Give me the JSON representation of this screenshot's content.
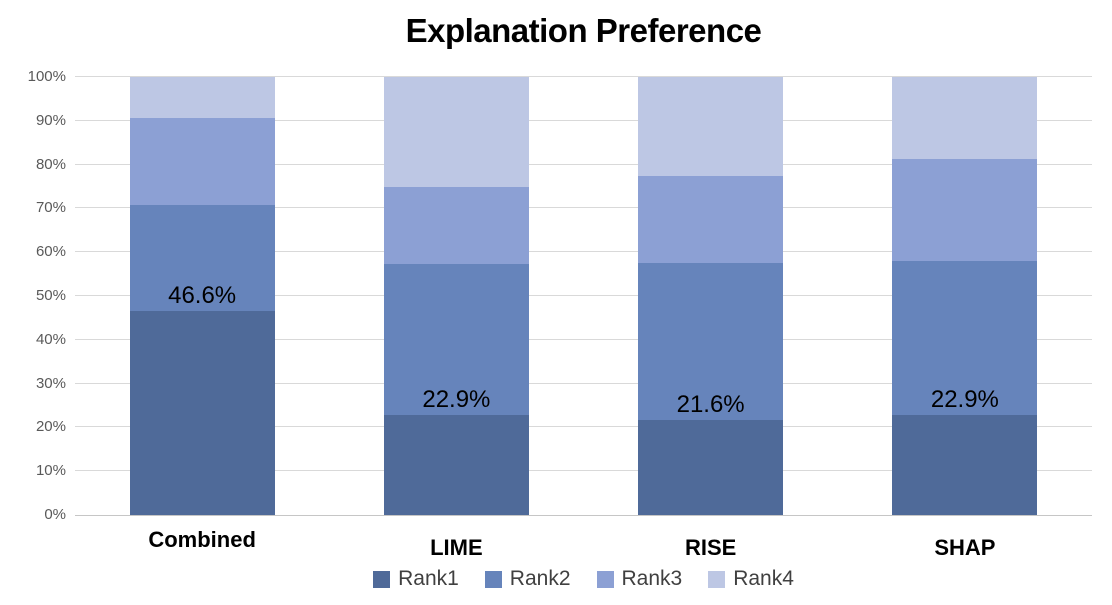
{
  "title": "Explanation Preference",
  "colors": {
    "background": "#ffffff",
    "gridline": "#d9d9d9",
    "axis_line": "#c6c6c6",
    "tick_label": "#595959",
    "category_label": "#000000",
    "data_label": "#000000",
    "legend_text": "#404040",
    "title_text": "#000000"
  },
  "chart_data": {
    "type": "bar",
    "subtype": "stacked-100-percent",
    "title": "Explanation Preference",
    "categories": [
      "Combined",
      "LIME",
      "RISE",
      "SHAP"
    ],
    "series": [
      {
        "name": "Rank1",
        "color": "#4f6a99",
        "values": [
          46.6,
          22.9,
          21.6,
          22.9
        ]
      },
      {
        "name": "Rank2",
        "color": "#6684bb",
        "values": [
          24.2,
          34.5,
          35.9,
          35.1
        ]
      },
      {
        "name": "Rank3",
        "color": "#8ca0d4",
        "values": [
          19.9,
          17.6,
          19.9,
          23.3
        ]
      },
      {
        "name": "Rank4",
        "color": "#bdc7e4",
        "values": [
          9.3,
          25.0,
          22.6,
          18.7
        ]
      }
    ],
    "data_labels": {
      "series": "Rank1",
      "labels": [
        "46.6%",
        "22.9%",
        "21.6%",
        "22.9%"
      ]
    },
    "xlabel": "",
    "ylabel": "",
    "ylim": [
      0,
      100
    ],
    "y_ticks": [
      "0%",
      "10%",
      "20%",
      "30%",
      "40%",
      "50%",
      "60%",
      "70%",
      "80%",
      "90%",
      "100%"
    ],
    "grid": true,
    "legend_position": "bottom",
    "legend": [
      "Rank1",
      "Rank2",
      "Rank3",
      "Rank4"
    ]
  }
}
